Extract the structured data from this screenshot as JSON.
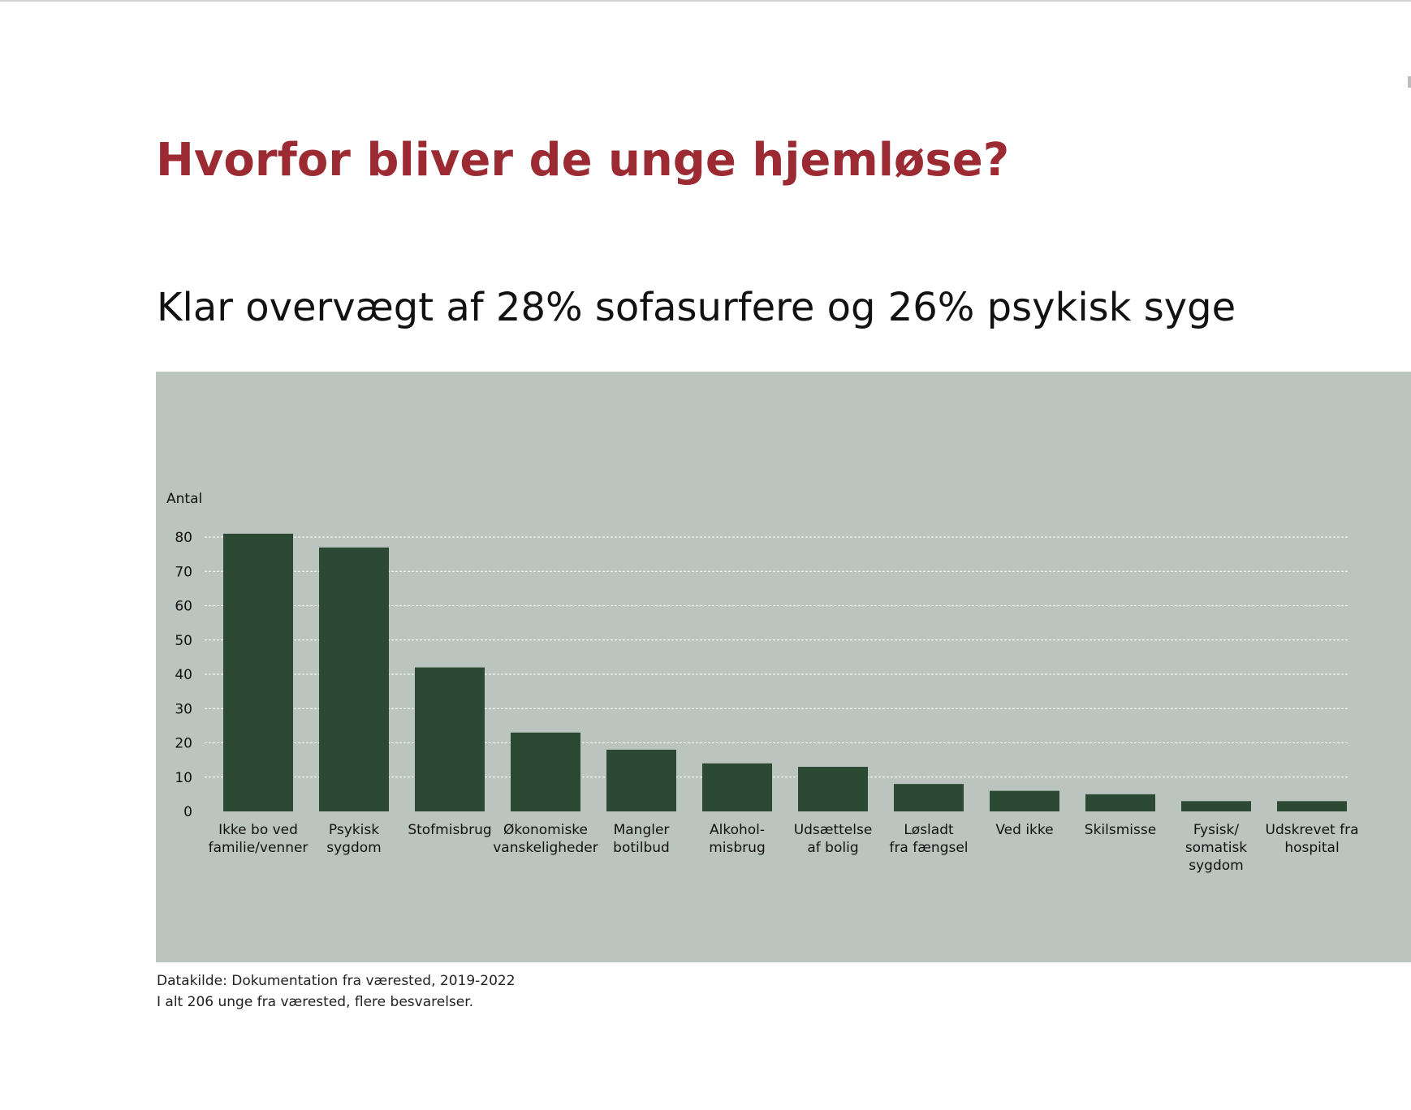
{
  "page": {
    "title": "Hvorfor bliver de unge hjemløse?",
    "subtitle": "Klar overvægt af 28% sofasurfere og 26% psykisk syge",
    "source_note": "Datakilde: Dokumentation fra værested, 2019-2022",
    "total_note": "I alt 206 unge fra værested, flere besvarelser."
  },
  "colors": {
    "title": "#9b2a33",
    "panel_background": "#bbc4bf",
    "bar": "#2c4a33",
    "gridline": "#ffffff",
    "text": "#111111"
  },
  "chart_data": {
    "type": "bar",
    "title": "",
    "xlabel": "",
    "ylabel": "Antal",
    "ylim": [
      0,
      80
    ],
    "yticks": [
      0,
      10,
      20,
      30,
      40,
      50,
      60,
      70,
      80
    ],
    "grid": true,
    "legend": "none",
    "categories": [
      [
        "Ikke bo ved",
        "familie/venner"
      ],
      [
        "Psykisk",
        "sygdom"
      ],
      [
        "Stofmisbrug"
      ],
      [
        "Økonomiske",
        "vanskeligheder"
      ],
      [
        "Mangler",
        "botilbud"
      ],
      [
        "Alkohol-",
        "misbrug"
      ],
      [
        "Udsættelse",
        "af bolig"
      ],
      [
        "Løsladt",
        "fra fængsel"
      ],
      [
        "Ved ikke"
      ],
      [
        "Skilsmisse"
      ],
      [
        "Fysisk/",
        "somatisk",
        "sygdom"
      ],
      [
        "Udskrevet fra",
        "hospital"
      ]
    ],
    "values": [
      81,
      77,
      42,
      23,
      18,
      14,
      13,
      8,
      6,
      5,
      3,
      3
    ]
  }
}
